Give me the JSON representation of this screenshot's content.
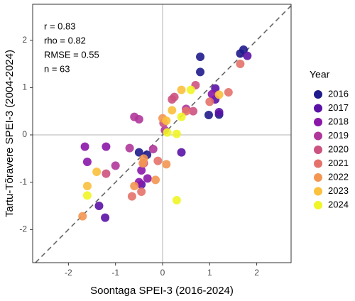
{
  "chart_data": {
    "type": "scatter",
    "x_label": "Soontaga SPEI-3 (2016-2024)",
    "y_label": "Tartu-Tõravere SPEI-3 (2004-2024)",
    "annotations": [
      "r = 0.83",
      "rho = 0.82",
      "RMSE = 0.55",
      "n = 63"
    ],
    "legend_title": "Year",
    "legend_position": "right",
    "xlim": [
      -2.76,
      2.73
    ],
    "ylim": [
      -2.7,
      2.76
    ],
    "xticks": [
      -2,
      -1,
      0,
      1,
      2
    ],
    "yticks": [
      -2,
      -1,
      0,
      1,
      2
    ],
    "series": [
      {
        "name": "2016",
        "color": "#1f1b8c",
        "x": [
          0.8,
          0.8,
          1.65,
          1.72,
          0.98,
          1.2,
          -0.5,
          -0.33
        ],
        "values": [
          1.65,
          1.33,
          1.72,
          1.8,
          0.42,
          0.43,
          -0.37,
          -0.42
        ]
      },
      {
        "name": "2017",
        "color": "#5a12a5",
        "x": [
          1.12,
          1.8,
          1.12,
          1.2,
          0.4,
          -1.35,
          -1.22,
          -0.45
        ],
        "values": [
          0.98,
          1.67,
          0.75,
          0.48,
          -0.37,
          -1.5,
          -1.75,
          -1.05
        ]
      },
      {
        "name": "2018",
        "color": "#8b17aa",
        "x": [
          -1.65,
          -1.2,
          -1.6,
          -0.45,
          -0.32,
          -0.5,
          1.05
        ],
        "values": [
          -0.25,
          -0.25,
          -0.57,
          -0.75,
          -0.92,
          -1.0,
          0.86
        ]
      },
      {
        "name": "2019",
        "color": "#b0379a",
        "x": [
          -0.6,
          -0.5,
          -0.2,
          -1.0,
          -0.7,
          0.5,
          0.05
        ],
        "values": [
          0.38,
          0.33,
          -0.3,
          -0.65,
          -0.28,
          0.55,
          0.1
        ]
      },
      {
        "name": "2020",
        "color": "#cc527f",
        "x": [
          0.2,
          0.25,
          0.02,
          0.7,
          0.65,
          -1.2,
          -0.4
        ],
        "values": [
          0.75,
          0.8,
          0.25,
          1.05,
          0.5,
          -0.82,
          -0.6
        ]
      },
      {
        "name": "2021",
        "color": "#e4726a",
        "x": [
          1.65,
          1.4,
          1.0,
          -0.1,
          0.5,
          -0.45,
          -0.65
        ],
        "values": [
          1.5,
          0.9,
          0.7,
          -0.55,
          0.5,
          -1.2,
          -1.3
        ]
      },
      {
        "name": "2022",
        "color": "#f39652",
        "x": [
          0.08,
          -0.6,
          -0.15,
          -0.4,
          -0.42,
          -1.7,
          0.0
        ],
        "values": [
          -0.62,
          -1.08,
          -0.95,
          -0.5,
          -0.6,
          -1.72,
          0.35
        ]
      },
      {
        "name": "2023",
        "color": "#fbc03c",
        "x": [
          -1.4,
          -1.6,
          0.2,
          0.4,
          0.08,
          1.2
        ],
        "values": [
          -0.78,
          -1.08,
          0.52,
          0.95,
          0.3,
          0.85
        ]
      },
      {
        "name": "2024",
        "color": "#f0f525",
        "x": [
          0.3,
          0.4,
          0.6,
          -1.6,
          0.3,
          0.1
        ],
        "values": [
          0.02,
          0.38,
          0.95,
          -1.28,
          -1.38,
          0.05
        ]
      }
    ]
  }
}
